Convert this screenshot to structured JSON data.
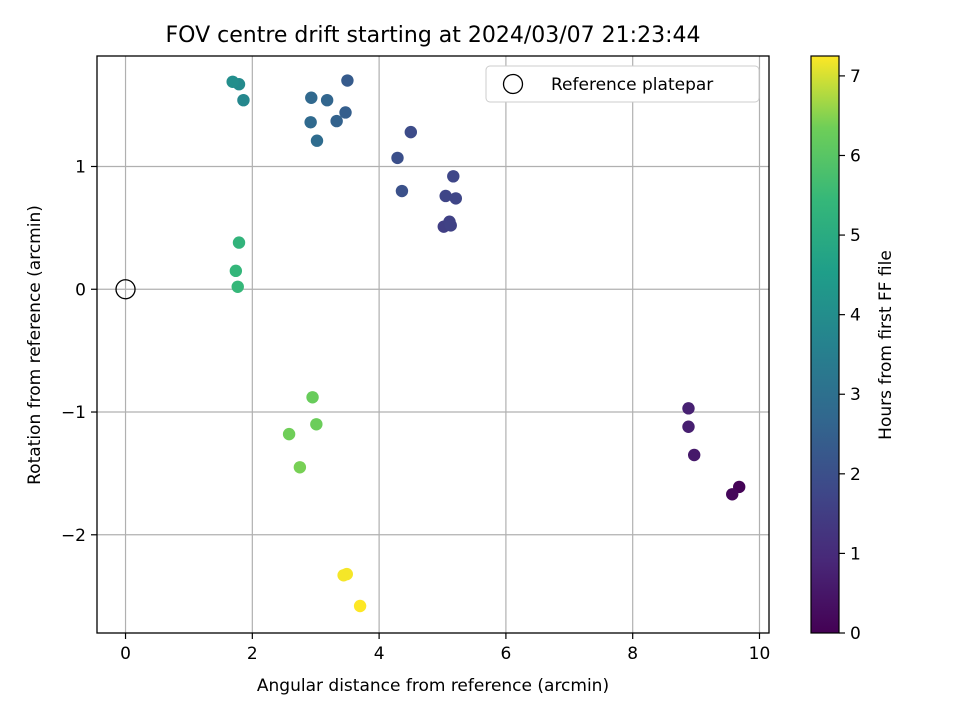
{
  "chart_data": {
    "type": "scatter",
    "title": "FOV centre drift starting at 2024/03/07 21:23:44",
    "xlabel": "Angular distance from reference (arcmin)",
    "ylabel": "Rotation from reference (arcmin)",
    "xlim": [
      -0.45,
      10.15
    ],
    "ylim": [
      -2.8,
      1.9
    ],
    "xticks": [
      0,
      2,
      4,
      6,
      8,
      10
    ],
    "xtick_labels": [
      "0",
      "2",
      "4",
      "6",
      "8",
      "10"
    ],
    "yticks": [
      -2,
      -1,
      0,
      1
    ],
    "ytick_labels": [
      "−2",
      "−1",
      "0",
      "1"
    ],
    "grid": true,
    "legend": {
      "placement": "top-right",
      "entries": [
        "Reference platepar"
      ]
    },
    "reference": {
      "x": 0,
      "y": 0,
      "marker": "open-circle"
    },
    "colorbar": {
      "label": "Hours from first FF file",
      "range": [
        0,
        7.25
      ],
      "ticks": [
        0,
        1,
        2,
        3,
        4,
        5,
        6,
        7
      ],
      "tick_labels": [
        "0",
        "1",
        "2",
        "3",
        "4",
        "5",
        "6",
        "7"
      ],
      "colormap": "viridis"
    },
    "points": [
      {
        "x": 9.68,
        "y": -1.61,
        "h": 0.05
      },
      {
        "x": 9.57,
        "y": -1.67,
        "h": 0.15
      },
      {
        "x": 8.97,
        "y": -1.35,
        "h": 0.55
      },
      {
        "x": 8.88,
        "y": -1.12,
        "h": 0.7
      },
      {
        "x": 8.88,
        "y": -0.97,
        "h": 0.75
      },
      {
        "x": 5.02,
        "y": 0.51,
        "h": 1.55
      },
      {
        "x": 5.11,
        "y": 0.55,
        "h": 1.6
      },
      {
        "x": 5.13,
        "y": 0.52,
        "h": 1.62
      },
      {
        "x": 5.05,
        "y": 0.76,
        "h": 1.7
      },
      {
        "x": 5.21,
        "y": 0.74,
        "h": 1.72
      },
      {
        "x": 5.17,
        "y": 0.92,
        "h": 1.75
      },
      {
        "x": 4.5,
        "y": 1.28,
        "h": 1.9
      },
      {
        "x": 4.29,
        "y": 1.07,
        "h": 2.0
      },
      {
        "x": 4.36,
        "y": 0.8,
        "h": 2.05
      },
      {
        "x": 3.5,
        "y": 1.7,
        "h": 2.35
      },
      {
        "x": 3.47,
        "y": 1.44,
        "h": 2.45
      },
      {
        "x": 3.33,
        "y": 1.37,
        "h": 2.55
      },
      {
        "x": 3.18,
        "y": 1.54,
        "h": 2.65
      },
      {
        "x": 2.93,
        "y": 1.56,
        "h": 2.75
      },
      {
        "x": 2.92,
        "y": 1.36,
        "h": 2.8
      },
      {
        "x": 3.02,
        "y": 1.21,
        "h": 2.85
      },
      {
        "x": 1.86,
        "y": 1.54,
        "h": 3.8
      },
      {
        "x": 1.79,
        "y": 1.67,
        "h": 3.9
      },
      {
        "x": 1.69,
        "y": 1.69,
        "h": 4.0
      },
      {
        "x": 1.79,
        "y": 0.38,
        "h": 5.3
      },
      {
        "x": 1.74,
        "y": 0.15,
        "h": 5.4
      },
      {
        "x": 1.77,
        "y": 0.02,
        "h": 5.45
      },
      {
        "x": 2.95,
        "y": -0.88,
        "h": 6.25
      },
      {
        "x": 3.01,
        "y": -1.1,
        "h": 6.3
      },
      {
        "x": 2.58,
        "y": -1.18,
        "h": 6.35
      },
      {
        "x": 2.75,
        "y": -1.45,
        "h": 6.4
      },
      {
        "x": 3.49,
        "y": -2.32,
        "h": 7.2
      },
      {
        "x": 3.44,
        "y": -2.33,
        "h": 7.2
      },
      {
        "x": 3.7,
        "y": -2.58,
        "h": 7.25
      }
    ]
  }
}
